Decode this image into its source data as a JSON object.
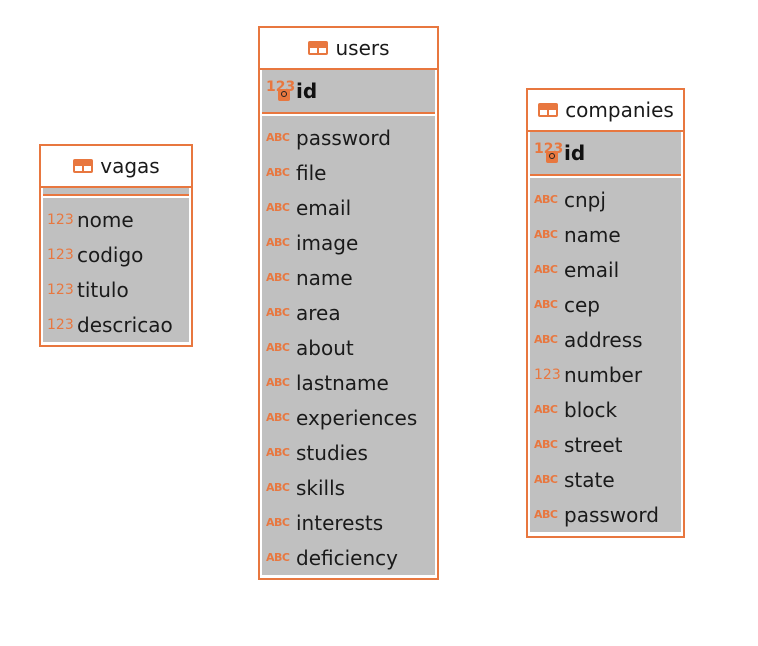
{
  "colors": {
    "border": "#e8773f",
    "fill": "#c0c0c0",
    "icon": "#e8773f"
  },
  "entities": {
    "vagas": {
      "name": "vagas",
      "pk": null,
      "columns": [
        {
          "name": "nome",
          "type": "123"
        },
        {
          "name": "codigo",
          "type": "123"
        },
        {
          "name": "titulo",
          "type": "123"
        },
        {
          "name": "descricao",
          "type": "123"
        }
      ]
    },
    "users": {
      "name": "users",
      "pk": {
        "name": "id",
        "type": "123"
      },
      "columns": [
        {
          "name": "password",
          "type": "ABC"
        },
        {
          "name": "file",
          "type": "ABC"
        },
        {
          "name": "email",
          "type": "ABC"
        },
        {
          "name": "image",
          "type": "ABC"
        },
        {
          "name": "name",
          "type": "ABC"
        },
        {
          "name": "area",
          "type": "ABC"
        },
        {
          "name": "about",
          "type": "ABC"
        },
        {
          "name": "lastname",
          "type": "ABC"
        },
        {
          "name": "experiences",
          "type": "ABC"
        },
        {
          "name": "studies",
          "type": "ABC"
        },
        {
          "name": "skills",
          "type": "ABC"
        },
        {
          "name": "interests",
          "type": "ABC"
        },
        {
          "name": "deficiency",
          "type": "ABC"
        }
      ]
    },
    "companies": {
      "name": "companies",
      "pk": {
        "name": "id",
        "type": "123"
      },
      "columns": [
        {
          "name": "cnpj",
          "type": "ABC"
        },
        {
          "name": "name",
          "type": "ABC"
        },
        {
          "name": "email",
          "type": "ABC"
        },
        {
          "name": "cep",
          "type": "ABC"
        },
        {
          "name": "address",
          "type": "ABC"
        },
        {
          "name": "number",
          "type": "123"
        },
        {
          "name": "block",
          "type": "ABC"
        },
        {
          "name": "street",
          "type": "ABC"
        },
        {
          "name": "state",
          "type": "ABC"
        },
        {
          "name": "password",
          "type": "ABC"
        }
      ]
    }
  }
}
